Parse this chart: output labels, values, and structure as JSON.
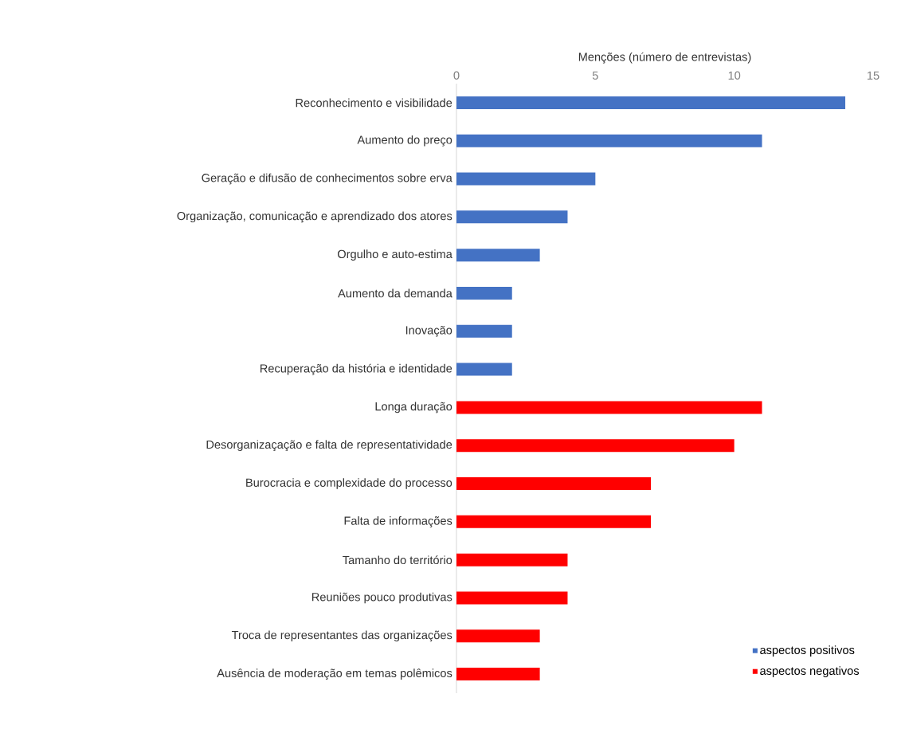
{
  "chart_data": {
    "type": "bar",
    "orientation": "horizontal",
    "xlabel": "Menções (número de entrevistas)",
    "categories": [
      "Reconhecimento e visibilidade",
      "Aumento do preço",
      "Geração e difusão de conhecimentos sobre erva",
      "Organização, comunicação e aprendizado dos atores",
      "Orgulho e auto-estima",
      "Aumento da demanda",
      "Inovação",
      "Recuperação da história e identidade",
      "Longa duração",
      "Desorganizaçação e falta de representatividade",
      "Burocracia e complexidade do processo",
      "Falta de informações",
      "Tamanho do território",
      "Reuniões pouco produtivas",
      "Troca de representantes das organizações",
      "Ausência de moderação em temas polêmicos"
    ],
    "series": [
      {
        "name": "aspectos positivos",
        "color": "#4472c4",
        "values": [
          14,
          11,
          5,
          4,
          3,
          2,
          2,
          2,
          null,
          null,
          null,
          null,
          null,
          null,
          null,
          null
        ]
      },
      {
        "name": "aspectos negativos",
        "color": "#ff0000",
        "values": [
          null,
          null,
          null,
          null,
          null,
          null,
          null,
          null,
          11,
          10,
          7,
          7,
          4,
          4,
          3,
          3
        ]
      }
    ],
    "xlim": [
      0,
      15
    ],
    "xticks": [
      0,
      5,
      10,
      15
    ],
    "grid": false,
    "legend": "bottom right"
  }
}
